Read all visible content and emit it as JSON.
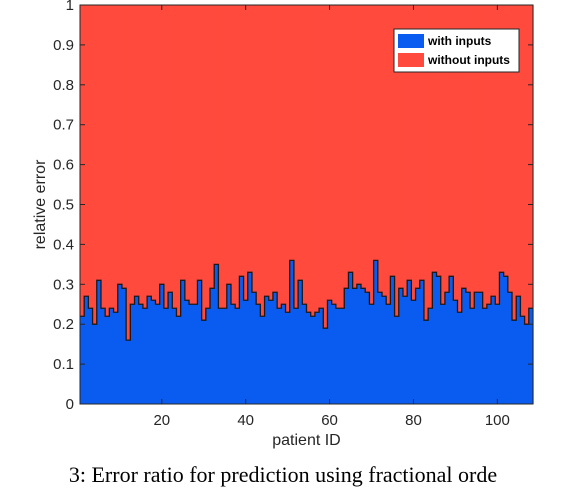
{
  "caption": "3: Error ratio for prediction using fractional orde",
  "colors": {
    "with": "#0a5cf0",
    "without": "#ff4a3d",
    "axis": "#262626"
  },
  "chart_data": {
    "type": "bar",
    "stacked": true,
    "title": "",
    "xlabel": "patient ID",
    "ylabel": "relative error",
    "xlim": [
      1,
      108
    ],
    "ylim": [
      0,
      1
    ],
    "xticks": [
      "20",
      "40",
      "60",
      "80",
      "100"
    ],
    "yticks": [
      "0",
      "0.1",
      "0.2",
      "0.3",
      "0.4",
      "0.5",
      "0.6",
      "0.7",
      "0.8",
      "0.9",
      "1"
    ],
    "legend": {
      "position": "top-right",
      "entries": [
        "with inputs",
        "without inputs"
      ]
    },
    "grid": false,
    "x": [
      1,
      2,
      3,
      4,
      5,
      6,
      7,
      8,
      9,
      10,
      11,
      12,
      13,
      14,
      15,
      16,
      17,
      18,
      19,
      20,
      21,
      22,
      23,
      24,
      25,
      26,
      27,
      28,
      29,
      30,
      31,
      32,
      33,
      34,
      35,
      36,
      37,
      38,
      39,
      40,
      41,
      42,
      43,
      44,
      45,
      46,
      47,
      48,
      49,
      50,
      51,
      52,
      53,
      54,
      55,
      56,
      57,
      58,
      59,
      60,
      61,
      62,
      63,
      64,
      65,
      66,
      67,
      68,
      69,
      70,
      71,
      72,
      73,
      74,
      75,
      76,
      77,
      78,
      79,
      80,
      81,
      82,
      83,
      84,
      85,
      86,
      87,
      88,
      89,
      90,
      91,
      92,
      93,
      94,
      95,
      96,
      97,
      98,
      99,
      100,
      101,
      102,
      103,
      104,
      105,
      106,
      107,
      108
    ],
    "series": [
      {
        "name": "with inputs",
        "values": [
          0.22,
          0.27,
          0.24,
          0.2,
          0.31,
          0.24,
          0.22,
          0.24,
          0.23,
          0.3,
          0.29,
          0.16,
          0.25,
          0.27,
          0.25,
          0.24,
          0.27,
          0.26,
          0.25,
          0.3,
          0.24,
          0.28,
          0.24,
          0.22,
          0.31,
          0.26,
          0.25,
          0.25,
          0.31,
          0.21,
          0.24,
          0.29,
          0.35,
          0.24,
          0.24,
          0.3,
          0.25,
          0.24,
          0.32,
          0.26,
          0.33,
          0.28,
          0.25,
          0.22,
          0.27,
          0.26,
          0.28,
          0.24,
          0.25,
          0.23,
          0.36,
          0.24,
          0.31,
          0.25,
          0.23,
          0.22,
          0.23,
          0.24,
          0.19,
          0.26,
          0.25,
          0.24,
          0.24,
          0.29,
          0.33,
          0.29,
          0.3,
          0.29,
          0.28,
          0.25,
          0.36,
          0.28,
          0.27,
          0.25,
          0.32,
          0.22,
          0.29,
          0.27,
          0.31,
          0.26,
          0.29,
          0.31,
          0.21,
          0.24,
          0.33,
          0.32,
          0.25,
          0.28,
          0.32,
          0.26,
          0.23,
          0.29,
          0.28,
          0.24,
          0.28,
          0.28,
          0.24,
          0.25,
          0.27,
          0.25,
          0.33,
          0.32,
          0.28,
          0.21,
          0.27,
          0.22,
          0.2,
          0.24
        ]
      },
      {
        "name": "without inputs",
        "values": [
          0.78,
          0.73,
          0.76,
          0.8,
          0.69,
          0.76,
          0.78,
          0.76,
          0.77,
          0.7,
          0.71,
          0.84,
          0.75,
          0.73,
          0.75,
          0.76,
          0.73,
          0.74,
          0.75,
          0.7,
          0.76,
          0.72,
          0.76,
          0.78,
          0.69,
          0.74,
          0.75,
          0.75,
          0.69,
          0.79,
          0.76,
          0.71,
          0.65,
          0.76,
          0.76,
          0.7,
          0.75,
          0.76,
          0.68,
          0.74,
          0.67,
          0.72,
          0.75,
          0.78,
          0.73,
          0.74,
          0.72,
          0.76,
          0.75,
          0.77,
          0.64,
          0.76,
          0.69,
          0.75,
          0.77,
          0.78,
          0.77,
          0.76,
          0.81,
          0.74,
          0.75,
          0.76,
          0.76,
          0.71,
          0.67,
          0.71,
          0.7,
          0.71,
          0.72,
          0.75,
          0.64,
          0.72,
          0.73,
          0.75,
          0.68,
          0.78,
          0.71,
          0.73,
          0.69,
          0.74,
          0.71,
          0.69,
          0.79,
          0.76,
          0.67,
          0.68,
          0.75,
          0.72,
          0.68,
          0.74,
          0.77,
          0.71,
          0.72,
          0.76,
          0.72,
          0.72,
          0.76,
          0.75,
          0.73,
          0.75,
          0.67,
          0.68,
          0.72,
          0.79,
          0.73,
          0.78,
          0.8,
          0.76
        ]
      }
    ]
  }
}
